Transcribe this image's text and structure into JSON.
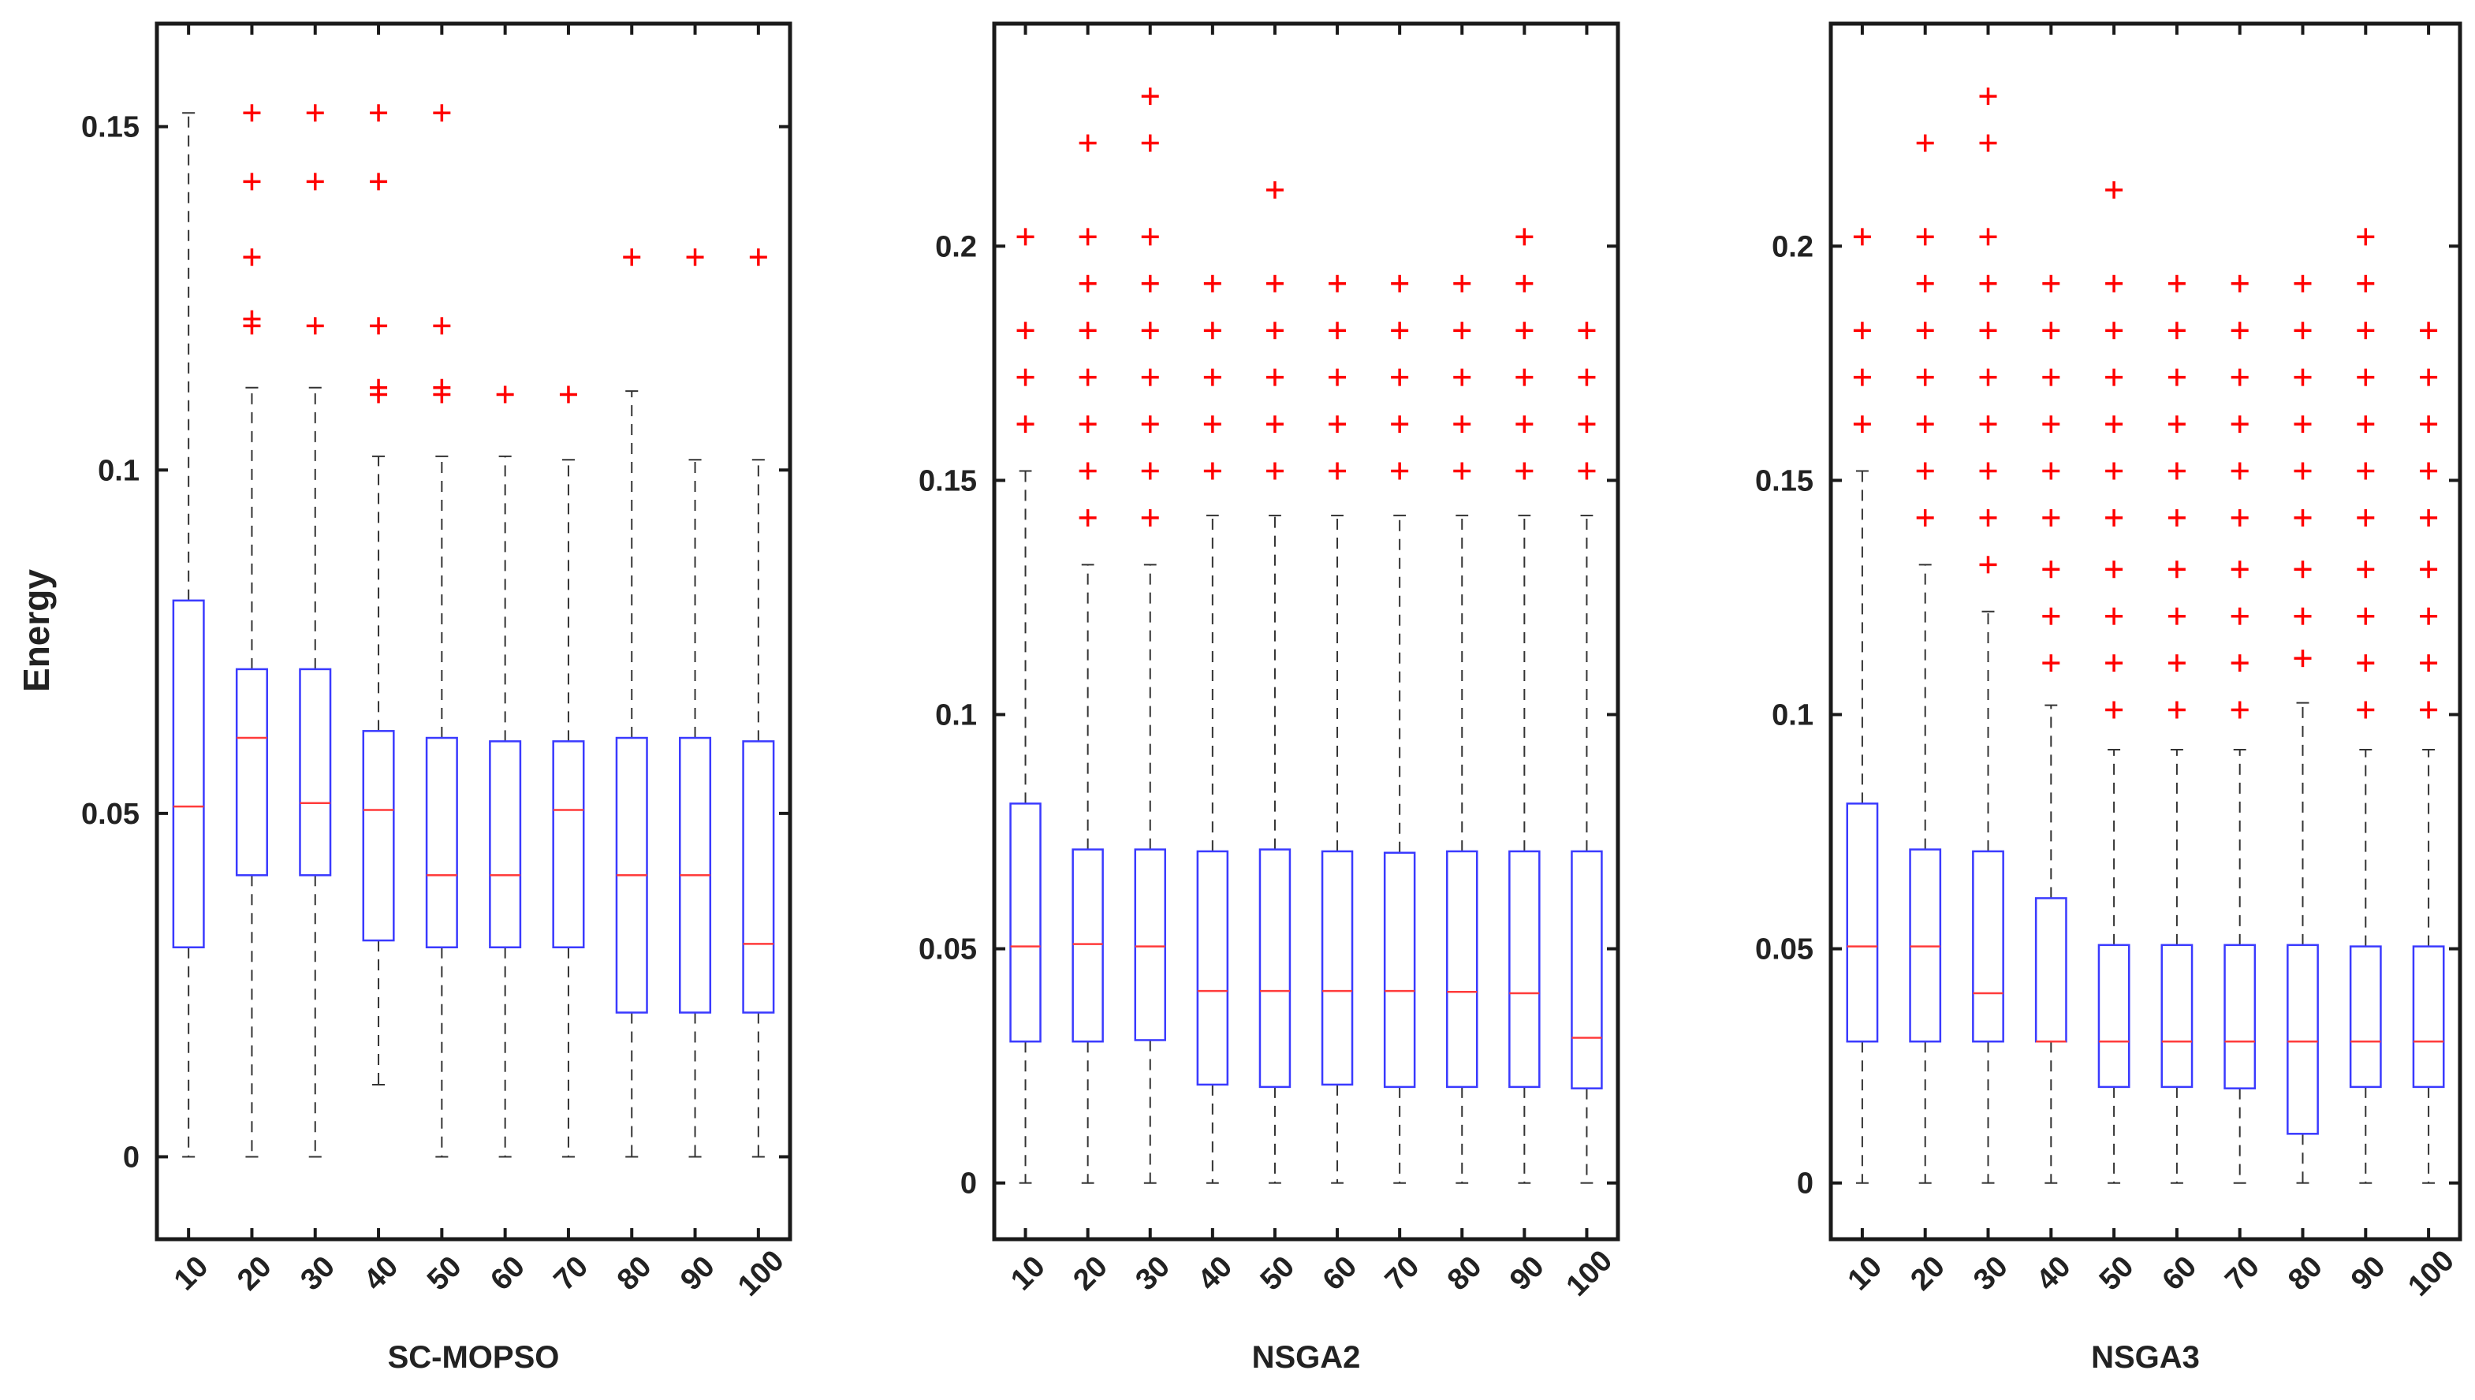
{
  "figure": {
    "ylabel": "Energy",
    "colors": {
      "box": "#3a3aff",
      "median": "#ff3b3b",
      "outlier": "#ff0000",
      "whisker": "#333333",
      "axis": "#1a1a1a"
    }
  },
  "chart_data": [
    {
      "type": "box",
      "title": "",
      "xlabel": "SC-MOPSO",
      "ylabel": "Energy",
      "categories": [
        "10",
        "20",
        "30",
        "40",
        "50",
        "60",
        "70",
        "80",
        "90",
        "100"
      ],
      "ylim": [
        -0.012,
        0.165
      ],
      "yticks": [
        0,
        0.05,
        0.1,
        0.15
      ],
      "ytick_labels": [
        "0",
        "0.05",
        "0.1",
        "0.15"
      ],
      "boxes": [
        {
          "whisker_low": 0,
          "q1": 0.0305,
          "median": 0.051,
          "q3": 0.081,
          "whisker_high": 0.152,
          "outliers": []
        },
        {
          "whisker_low": 0,
          "q1": 0.041,
          "median": 0.061,
          "q3": 0.071,
          "whisker_high": 0.112,
          "outliers": [
            0.121,
            0.122,
            0.131,
            0.142,
            0.152
          ]
        },
        {
          "whisker_low": 0,
          "q1": 0.041,
          "median": 0.0515,
          "q3": 0.071,
          "whisker_high": 0.112,
          "outliers": [
            0.121,
            0.142,
            0.152
          ]
        },
        {
          "whisker_low": 0.0105,
          "q1": 0.0315,
          "median": 0.0505,
          "q3": 0.062,
          "whisker_high": 0.102,
          "outliers": [
            0.111,
            0.112,
            0.121,
            0.142,
            0.152
          ]
        },
        {
          "whisker_low": 0,
          "q1": 0.0305,
          "median": 0.041,
          "q3": 0.061,
          "whisker_high": 0.102,
          "outliers": [
            0.111,
            0.112,
            0.121,
            0.152
          ]
        },
        {
          "whisker_low": 0,
          "q1": 0.0305,
          "median": 0.041,
          "q3": 0.0605,
          "whisker_high": 0.102,
          "outliers": [
            0.111
          ]
        },
        {
          "whisker_low": 0,
          "q1": 0.0305,
          "median": 0.0505,
          "q3": 0.0605,
          "whisker_high": 0.1015,
          "outliers": [
            0.111
          ]
        },
        {
          "whisker_low": 0,
          "q1": 0.021,
          "median": 0.041,
          "q3": 0.061,
          "whisker_high": 0.1115,
          "outliers": [
            0.131
          ]
        },
        {
          "whisker_low": 0,
          "q1": 0.021,
          "median": 0.041,
          "q3": 0.061,
          "whisker_high": 0.1015,
          "outliers": [
            0.131
          ]
        },
        {
          "whisker_low": 0,
          "q1": 0.021,
          "median": 0.031,
          "q3": 0.0605,
          "whisker_high": 0.1015,
          "outliers": [
            0.131
          ]
        }
      ]
    },
    {
      "type": "box",
      "title": "",
      "xlabel": "NSGA2",
      "ylabel": "",
      "categories": [
        "10",
        "20",
        "30",
        "40",
        "50",
        "60",
        "70",
        "80",
        "90",
        "100"
      ],
      "ylim": [
        -0.012,
        0.2475
      ],
      "yticks": [
        0,
        0.05,
        0.1,
        0.15,
        0.2
      ],
      "ytick_labels": [
        "0",
        "0.05",
        "0.1",
        "0.15",
        "0.2"
      ],
      "boxes": [
        {
          "whisker_low": 0,
          "q1": 0.0302,
          "median": 0.0505,
          "q3": 0.081,
          "whisker_high": 0.152,
          "outliers": [
            0.162,
            0.172,
            0.182,
            0.202
          ]
        },
        {
          "whisker_low": 0,
          "q1": 0.0302,
          "median": 0.051,
          "q3": 0.0712,
          "whisker_high": 0.132,
          "outliers": [
            0.142,
            0.152,
            0.162,
            0.172,
            0.182,
            0.192,
            0.202,
            0.222
          ]
        },
        {
          "whisker_low": 0,
          "q1": 0.0305,
          "median": 0.0505,
          "q3": 0.0712,
          "whisker_high": 0.132,
          "outliers": [
            0.142,
            0.152,
            0.162,
            0.172,
            0.182,
            0.192,
            0.202,
            0.222,
            0.232
          ]
        },
        {
          "whisker_low": 0,
          "q1": 0.021,
          "median": 0.041,
          "q3": 0.0708,
          "whisker_high": 0.1425,
          "outliers": [
            0.152,
            0.162,
            0.172,
            0.182,
            0.192
          ]
        },
        {
          "whisker_low": 0,
          "q1": 0.0205,
          "median": 0.041,
          "q3": 0.0712,
          "whisker_high": 0.1425,
          "outliers": [
            0.152,
            0.162,
            0.172,
            0.182,
            0.192,
            0.212
          ]
        },
        {
          "whisker_low": 0,
          "q1": 0.021,
          "median": 0.041,
          "q3": 0.0708,
          "whisker_high": 0.1425,
          "outliers": [
            0.152,
            0.162,
            0.172,
            0.182,
            0.192
          ]
        },
        {
          "whisker_low": 0,
          "q1": 0.0205,
          "median": 0.041,
          "q3": 0.0705,
          "whisker_high": 0.1425,
          "outliers": [
            0.152,
            0.162,
            0.172,
            0.182,
            0.192
          ]
        },
        {
          "whisker_low": 0,
          "q1": 0.0205,
          "median": 0.0408,
          "q3": 0.0708,
          "whisker_high": 0.1425,
          "outliers": [
            0.152,
            0.162,
            0.172,
            0.182,
            0.192
          ]
        },
        {
          "whisker_low": 0,
          "q1": 0.0205,
          "median": 0.0405,
          "q3": 0.0708,
          "whisker_high": 0.1425,
          "outliers": [
            0.152,
            0.162,
            0.172,
            0.182,
            0.192,
            0.202
          ]
        },
        {
          "whisker_low": 0,
          "q1": 0.0202,
          "median": 0.031,
          "q3": 0.0708,
          "whisker_high": 0.1425,
          "outliers": [
            0.152,
            0.162,
            0.172,
            0.182
          ]
        }
      ]
    },
    {
      "type": "box",
      "title": "",
      "xlabel": "NSGA3",
      "ylabel": "",
      "categories": [
        "10",
        "20",
        "30",
        "40",
        "50",
        "60",
        "70",
        "80",
        "90",
        "100"
      ],
      "ylim": [
        -0.012,
        0.2475
      ],
      "yticks": [
        0,
        0.05,
        0.1,
        0.15,
        0.2
      ],
      "ytick_labels": [
        "0",
        "0.05",
        "0.1",
        "0.15",
        "0.2"
      ],
      "boxes": [
        {
          "whisker_low": 0,
          "q1": 0.0302,
          "median": 0.0505,
          "q3": 0.081,
          "whisker_high": 0.152,
          "outliers": [
            0.162,
            0.172,
            0.182,
            0.202
          ]
        },
        {
          "whisker_low": 0,
          "q1": 0.0302,
          "median": 0.0505,
          "q3": 0.0712,
          "whisker_high": 0.132,
          "outliers": [
            0.142,
            0.152,
            0.162,
            0.172,
            0.182,
            0.192,
            0.202,
            0.222
          ]
        },
        {
          "whisker_low": 0,
          "q1": 0.0302,
          "median": 0.0405,
          "q3": 0.0708,
          "whisker_high": 0.122,
          "outliers": [
            0.132,
            0.142,
            0.152,
            0.162,
            0.172,
            0.182,
            0.192,
            0.202,
            0.222,
            0.232
          ]
        },
        {
          "whisker_low": 0,
          "q1": 0.0302,
          "median": 0.0302,
          "q3": 0.0608,
          "whisker_high": 0.102,
          "outliers": [
            0.111,
            0.121,
            0.131,
            0.142,
            0.152,
            0.162,
            0.172,
            0.182,
            0.192
          ]
        },
        {
          "whisker_low": 0,
          "q1": 0.0205,
          "median": 0.0302,
          "q3": 0.0508,
          "whisker_high": 0.0925,
          "outliers": [
            0.101,
            0.111,
            0.121,
            0.131,
            0.142,
            0.152,
            0.162,
            0.172,
            0.182,
            0.192,
            0.212
          ]
        },
        {
          "whisker_low": 0,
          "q1": 0.0205,
          "median": 0.0302,
          "q3": 0.0508,
          "whisker_high": 0.0925,
          "outliers": [
            0.101,
            0.111,
            0.121,
            0.131,
            0.142,
            0.152,
            0.162,
            0.172,
            0.182,
            0.192
          ]
        },
        {
          "whisker_low": 0,
          "q1": 0.0202,
          "median": 0.0302,
          "q3": 0.0508,
          "whisker_high": 0.0925,
          "outliers": [
            0.101,
            0.111,
            0.121,
            0.131,
            0.142,
            0.152,
            0.162,
            0.172,
            0.182,
            0.192
          ]
        },
        {
          "whisker_low": 0,
          "q1": 0.0105,
          "median": 0.0302,
          "q3": 0.0508,
          "whisker_high": 0.1025,
          "outliers": [
            0.112,
            0.121,
            0.131,
            0.142,
            0.152,
            0.162,
            0.172,
            0.182,
            0.192
          ]
        },
        {
          "whisker_low": 0,
          "q1": 0.0205,
          "median": 0.0302,
          "q3": 0.0505,
          "whisker_high": 0.0925,
          "outliers": [
            0.101,
            0.111,
            0.121,
            0.131,
            0.142,
            0.152,
            0.162,
            0.172,
            0.182,
            0.192,
            0.202
          ]
        },
        {
          "whisker_low": 0,
          "q1": 0.0205,
          "median": 0.0302,
          "q3": 0.0505,
          "whisker_high": 0.0925,
          "outliers": [
            0.101,
            0.111,
            0.121,
            0.131,
            0.142,
            0.152,
            0.162,
            0.172,
            0.182
          ]
        }
      ]
    }
  ]
}
